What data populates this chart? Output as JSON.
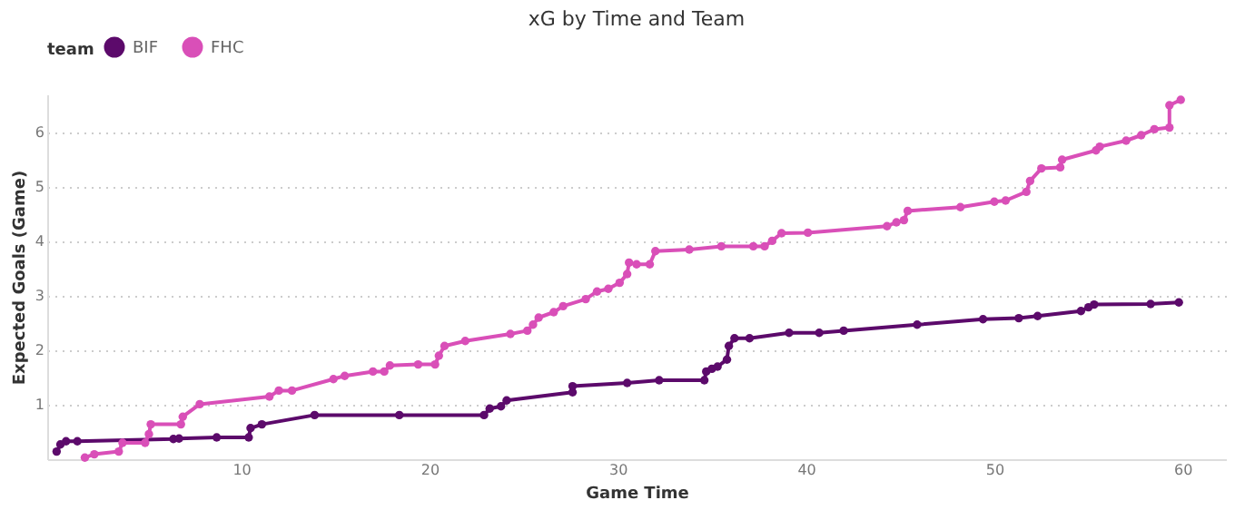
{
  "chart_data": {
    "type": "line",
    "title": "xG by Time and Team",
    "xlabel": "Game Time",
    "ylabel": "Expected Goals (Game)",
    "legend_title": "team",
    "legend": "top",
    "grid": "y",
    "marker": "circle",
    "line_style": "solid",
    "xlim": [
      -0.3,
      62.3
    ],
    "xticks": [
      10,
      20,
      30,
      40,
      50,
      60
    ],
    "ylim": [
      0,
      6.7
    ],
    "yticks": [
      1,
      2,
      3,
      4,
      5,
      6
    ],
    "series": [
      {
        "name": "BIF",
        "color": "#5c0a6b",
        "x": [
          0.2,
          0.4,
          0.7,
          1.3,
          6.4,
          6.7,
          8.7,
          10.4,
          10.5,
          11.1,
          13.9,
          18.4,
          22.9,
          23.2,
          23.8,
          24.1,
          27.6,
          27.6,
          30.5,
          32.2,
          34.6,
          34.7,
          35.0,
          35.3,
          35.8,
          35.9,
          36.2,
          37.0,
          39.1,
          40.7,
          42.0,
          45.9,
          49.4,
          51.3,
          52.3,
          54.6,
          55.0,
          55.3,
          58.3,
          59.8
        ],
        "values": [
          0.14,
          0.27,
          0.33,
          0.33,
          0.37,
          0.38,
          0.4,
          0.4,
          0.57,
          0.64,
          0.81,
          0.81,
          0.81,
          0.93,
          0.97,
          1.08,
          1.23,
          1.34,
          1.4,
          1.45,
          1.45,
          1.61,
          1.66,
          1.7,
          1.83,
          2.08,
          2.22,
          2.22,
          2.32,
          2.32,
          2.36,
          2.47,
          2.57,
          2.59,
          2.63,
          2.72,
          2.79,
          2.84,
          2.85,
          2.88
        ]
      },
      {
        "name": "FHC",
        "color": "#d94fb8",
        "x": [
          1.7,
          2.2,
          3.5,
          3.7,
          4.9,
          5.1,
          5.2,
          6.8,
          6.9,
          7.8,
          11.5,
          12.0,
          12.7,
          14.9,
          15.5,
          17.0,
          17.6,
          17.9,
          19.4,
          20.3,
          20.5,
          20.8,
          21.9,
          24.3,
          25.2,
          25.5,
          25.8,
          26.6,
          27.1,
          28.3,
          28.9,
          29.5,
          30.1,
          30.5,
          30.6,
          31.0,
          31.7,
          32.0,
          33.8,
          35.5,
          37.2,
          37.8,
          38.2,
          38.7,
          40.1,
          44.3,
          44.8,
          45.2,
          45.4,
          48.2,
          50.0,
          50.6,
          51.7,
          51.9,
          52.5,
          53.5,
          53.6,
          55.4,
          55.6,
          57.0,
          57.8,
          58.5,
          59.3,
          59.3,
          59.9
        ],
        "values": [
          0.03,
          0.09,
          0.14,
          0.3,
          0.3,
          0.46,
          0.64,
          0.64,
          0.78,
          1.01,
          1.15,
          1.26,
          1.26,
          1.47,
          1.53,
          1.61,
          1.61,
          1.72,
          1.74,
          1.74,
          1.9,
          2.08,
          2.17,
          2.3,
          2.36,
          2.47,
          2.6,
          2.7,
          2.81,
          2.94,
          3.08,
          3.13,
          3.24,
          3.4,
          3.61,
          3.58,
          3.58,
          3.82,
          3.85,
          3.91,
          3.91,
          3.91,
          4.01,
          4.15,
          4.16,
          4.28,
          4.35,
          4.39,
          4.56,
          4.63,
          4.73,
          4.75,
          4.91,
          5.11,
          5.34,
          5.36,
          5.5,
          5.67,
          5.74,
          5.85,
          5.95,
          6.06,
          6.09,
          6.5,
          6.6
        ]
      }
    ]
  }
}
